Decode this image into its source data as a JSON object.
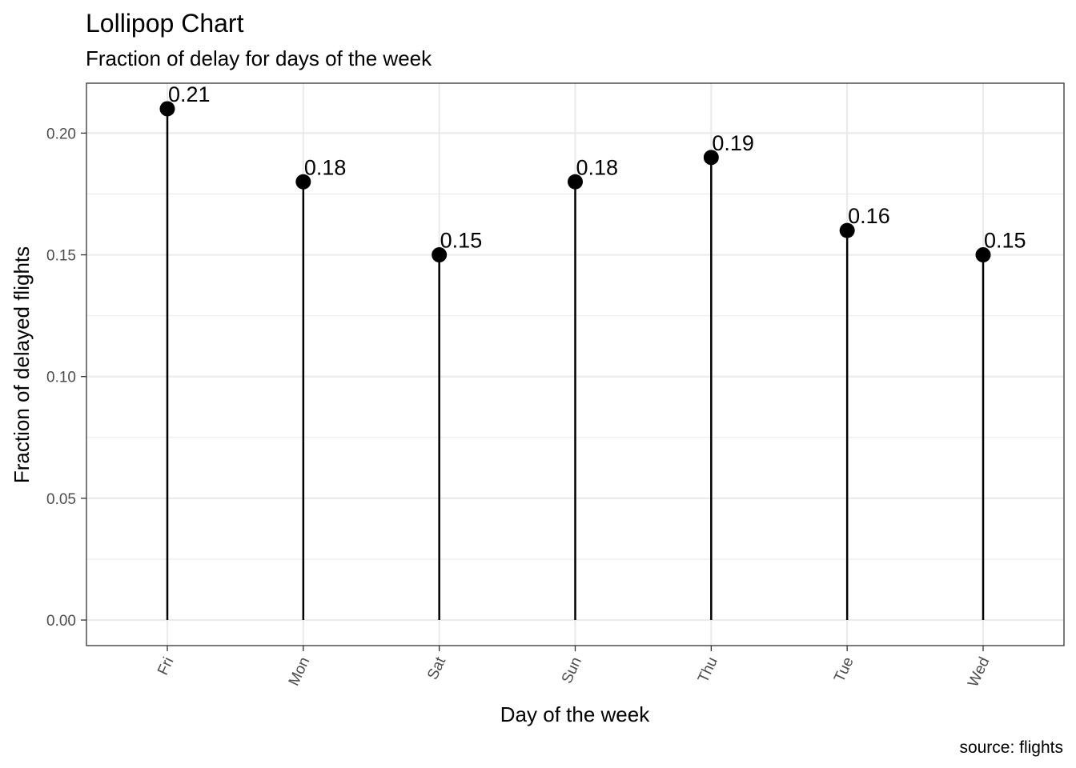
{
  "chart_data": {
    "type": "lollipop",
    "title": "Lollipop Chart",
    "subtitle": "Fraction of delay for days of the week",
    "xlabel": "Day of the week",
    "ylabel": "Fraction of delayed flights",
    "caption": "source: flights",
    "categories": [
      "Fri",
      "Mon",
      "Sat",
      "Sun",
      "Thu",
      "Tue",
      "Wed"
    ],
    "values": [
      0.21,
      0.18,
      0.15,
      0.18,
      0.19,
      0.16,
      0.15
    ],
    "data_labels": [
      "0.21",
      "0.18",
      "0.15",
      "0.18",
      "0.19",
      "0.16",
      "0.15"
    ],
    "ylim": [
      -0.0105,
      0.2205
    ],
    "yticks": [
      0.0,
      0.05,
      0.1,
      0.15,
      0.2
    ],
    "ytick_labels": [
      "0.00",
      "0.05",
      "0.10",
      "0.15",
      "0.20"
    ],
    "grid": true,
    "legend": "none",
    "colors": {
      "marks": "#000000",
      "grid": "#ebebeb",
      "tick_labels": "#4d4d4d",
      "border": "#333333"
    }
  }
}
